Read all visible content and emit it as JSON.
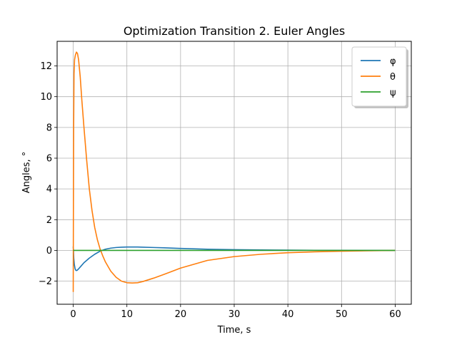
{
  "chart_data": {
    "type": "line",
    "title": "Optimization Transition 2. Euler Angles",
    "xlabel": "Time, s",
    "ylabel": "Angles, °",
    "xlim": [
      -3.0,
      63.0
    ],
    "ylim": [
      -3.5,
      13.6
    ],
    "xticks": [
      0,
      10,
      20,
      30,
      40,
      50,
      60
    ],
    "yticks": [
      -2,
      0,
      2,
      4,
      6,
      8,
      10,
      12
    ],
    "ytick_labels": [
      "−2",
      "0",
      "2",
      "4",
      "6",
      "8",
      "10",
      "12"
    ],
    "grid": true,
    "legend_position": "top-right",
    "series": [
      {
        "name": "φ",
        "color": "#1f77b4",
        "x": [
          0,
          0.05,
          0.1,
          0.2,
          0.35,
          0.5,
          0.7,
          1.0,
          1.5,
          2.0,
          3.0,
          4.0,
          5.0,
          6.0,
          7.0,
          8.0,
          9.0,
          10.0,
          11.0,
          12.0,
          13.0,
          15.0,
          17.0,
          20.0,
          25.0,
          30.0,
          35.0,
          40.0,
          45.0,
          50.0,
          55.0,
          60.0
        ],
        "y": [
          0.25,
          0.0,
          -0.5,
          -0.9,
          -1.2,
          -1.3,
          -1.3,
          -1.2,
          -1.0,
          -0.8,
          -0.5,
          -0.25,
          -0.05,
          0.08,
          0.15,
          0.19,
          0.21,
          0.22,
          0.22,
          0.22,
          0.21,
          0.19,
          0.17,
          0.13,
          0.08,
          0.05,
          0.03,
          0.02,
          0.01,
          0.01,
          0.0,
          0.0
        ]
      },
      {
        "name": "θ",
        "color": "#ff7f0e",
        "x": [
          0,
          0.03,
          0.08,
          0.15,
          0.25,
          0.4,
          0.6,
          0.8,
          1.0,
          1.3,
          1.6,
          2.0,
          2.5,
          3.0,
          3.5,
          4.0,
          4.5,
          5.0,
          5.5,
          6.0,
          7.0,
          8.0,
          9.0,
          10.0,
          11.0,
          12.0,
          13.0,
          15.0,
          17.0,
          20.0,
          25.0,
          30.0,
          35.0,
          40.0,
          45.0,
          50.0,
          55.0,
          60.0
        ],
        "y": [
          -2.7,
          2.0,
          8.0,
          11.5,
          12.4,
          12.7,
          12.9,
          12.8,
          12.4,
          11.3,
          9.8,
          8.0,
          5.9,
          4.0,
          2.6,
          1.5,
          0.7,
          0.1,
          -0.35,
          -0.75,
          -1.35,
          -1.75,
          -2.0,
          -2.1,
          -2.12,
          -2.1,
          -2.02,
          -1.8,
          -1.55,
          -1.15,
          -0.65,
          -0.4,
          -0.25,
          -0.15,
          -0.09,
          -0.05,
          -0.02,
          0.0
        ]
      },
      {
        "name": "ψ",
        "color": "#2ca02c",
        "x": [
          0,
          10,
          20,
          30,
          40,
          50,
          60
        ],
        "y": [
          0,
          0,
          0,
          0,
          0,
          0,
          0
        ]
      }
    ]
  }
}
